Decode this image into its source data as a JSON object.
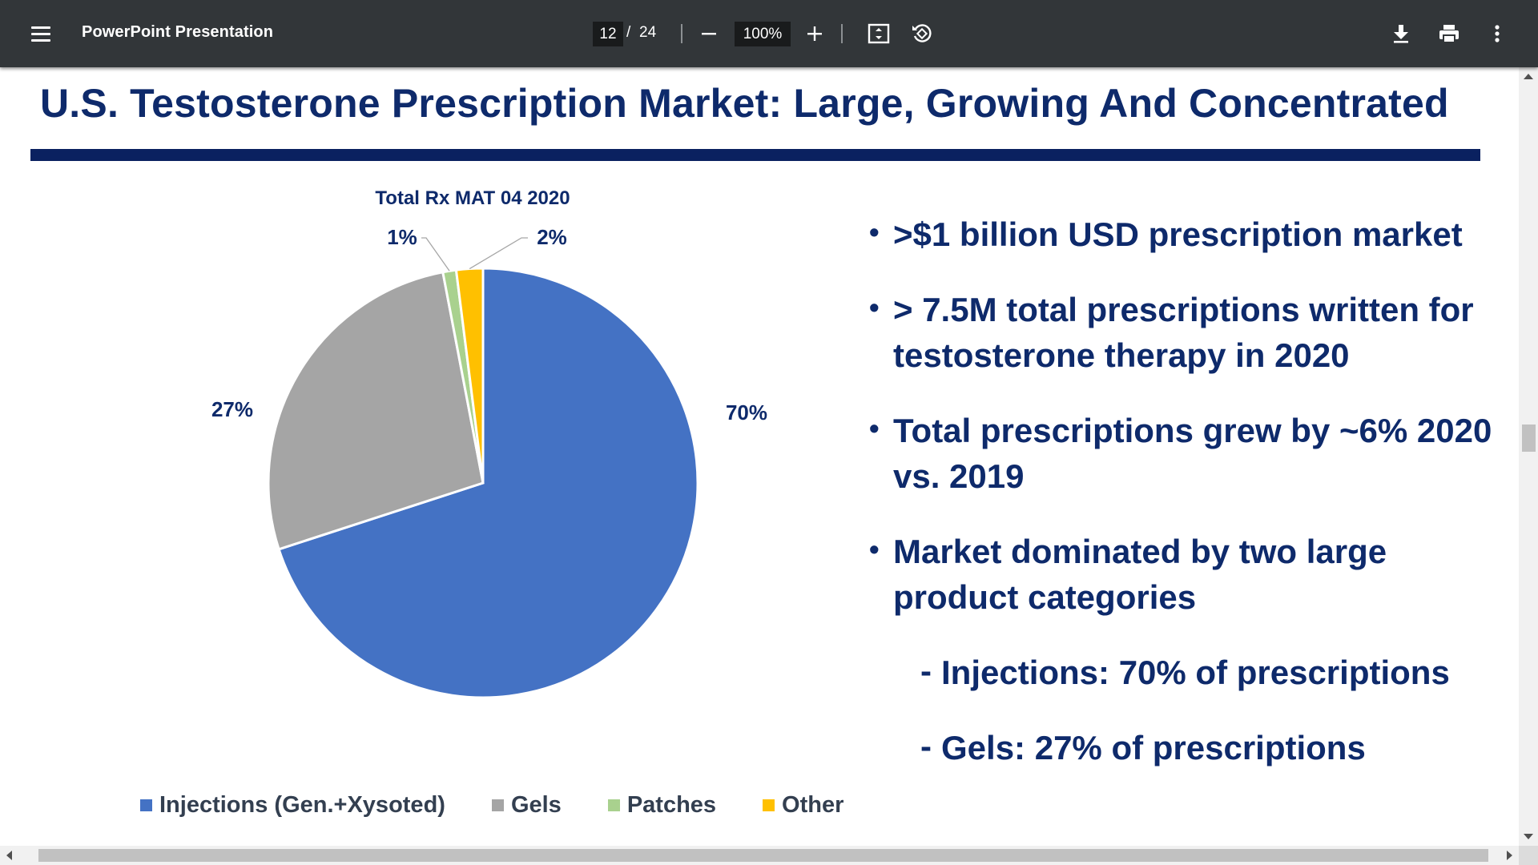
{
  "toolbar": {
    "title": "PowerPoint Presentation",
    "current_page": "12",
    "page_separator": "/",
    "total_pages": "24",
    "zoom": "100%",
    "icons": {
      "menu": "hamburger-menu-icon",
      "zoom_out": "minus-icon",
      "zoom_in": "plus-icon",
      "fit": "fit-to-page-icon",
      "rotate": "rotate-icon",
      "download": "download-icon",
      "print": "print-icon",
      "more": "more-vert-icon"
    }
  },
  "slide": {
    "title": "U.S. Testosterone Prescription Market: Large, Growing And Concentrated",
    "bullets": [
      ">$1 billion USD prescription market",
      "> 7.5M total prescriptions written for testosterone therapy in 2020",
      "Total prescriptions grew by ~6% 2020 vs. 2019",
      "Market dominated by two large product categories"
    ],
    "sub_bullets": [
      "Injections: 70% of prescriptions",
      "Gels: 27% of prescriptions"
    ]
  },
  "chart_data": {
    "type": "pie",
    "title": "Total Rx MAT 04 2020",
    "categories": [
      "Injections (Gen.+Xysoted)",
      "Gels",
      "Patches",
      "Other"
    ],
    "values": [
      70,
      27,
      1,
      2
    ],
    "labels": [
      "70%",
      "27%",
      "1%",
      "2%"
    ],
    "colors": [
      "#4472c4",
      "#a5a5a5",
      "#a9d18e",
      "#ffc000"
    ],
    "legend_position": "bottom"
  },
  "colors": {
    "toolbar_bg": "#323639",
    "title_text": "#0e2a6b",
    "title_rule": "#0a2160"
  }
}
